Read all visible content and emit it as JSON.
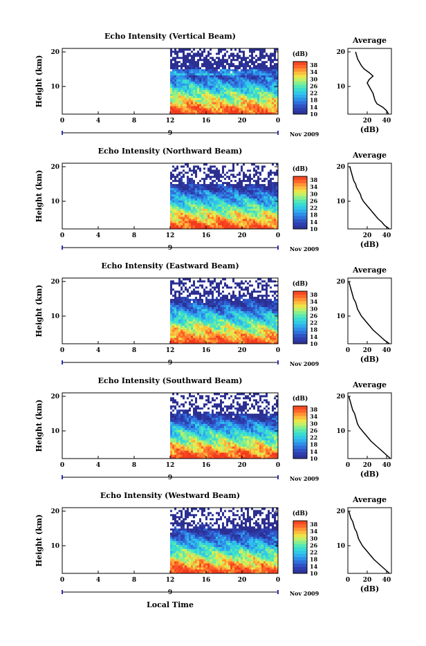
{
  "figure": {
    "xlabel": "Local Time",
    "date_label": "Nov 2009",
    "date_tick": "9",
    "colorbar_unit": "(dB)",
    "avg_title": "Average",
    "avg_xlabel": "(dB)",
    "ylabel": "Height (km)"
  },
  "chart_data": [
    {
      "type": "heatmap",
      "title": "Echo Intensity (Vertical Beam)",
      "ylabel": "Height (km)",
      "xlabel": "Local Time",
      "x_ticks": [
        "0",
        "4",
        "8",
        "12",
        "16",
        "20",
        "0"
      ],
      "y_ticks": [
        "10",
        "20"
      ],
      "xlim": [
        0,
        24
      ],
      "ylim": [
        2,
        21
      ],
      "data_start_hour": 12,
      "colorbar": {
        "unit": "(dB)",
        "ticks": [
          "10",
          "14",
          "18",
          "22",
          "26",
          "30",
          "34",
          "38"
        ],
        "range": [
          10,
          40
        ]
      },
      "profile": {
        "title": "Average",
        "xlabel": "(dB)",
        "x_ticks": [
          "20",
          "40"
        ],
        "xlim": [
          0,
          45
        ],
        "heights": [
          2,
          3,
          4,
          5,
          6,
          7,
          8,
          9,
          10,
          11,
          12,
          13,
          14,
          15,
          16,
          17,
          18,
          19,
          20
        ],
        "values": [
          42,
          40,
          36,
          30,
          28,
          27,
          26,
          24,
          22,
          20,
          22,
          26,
          22,
          17,
          14,
          12,
          10,
          9,
          8
        ]
      }
    },
    {
      "type": "heatmap",
      "title": "Echo Intensity (Northward Beam)",
      "ylabel": "Height (km)",
      "xlabel": "Local Time",
      "x_ticks": [
        "0",
        "4",
        "8",
        "12",
        "16",
        "20",
        "0"
      ],
      "y_ticks": [
        "10",
        "20"
      ],
      "xlim": [
        0,
        24
      ],
      "ylim": [
        2,
        21
      ],
      "data_start_hour": 12,
      "colorbar": {
        "unit": "(dB)",
        "ticks": [
          "10",
          "14",
          "18",
          "22",
          "26",
          "30",
          "34",
          "38"
        ],
        "range": [
          10,
          40
        ]
      },
      "profile": {
        "title": "Average",
        "xlabel": "(dB)",
        "x_ticks": [
          "20",
          "40"
        ],
        "xlim": [
          0,
          45
        ],
        "heights": [
          2,
          3,
          4,
          5,
          6,
          7,
          8,
          9,
          10,
          11,
          12,
          13,
          14,
          15,
          16,
          17,
          18,
          19,
          20
        ],
        "values": [
          43,
          38,
          35,
          31,
          28,
          25,
          22,
          19,
          16,
          14,
          13,
          11,
          9,
          8,
          6,
          5,
          4,
          3,
          2
        ]
      }
    },
    {
      "type": "heatmap",
      "title": "Echo Intensity (Eastward Beam)",
      "ylabel": "Height (km)",
      "xlabel": "Local Time",
      "x_ticks": [
        "0",
        "4",
        "8",
        "12",
        "16",
        "20",
        "0"
      ],
      "y_ticks": [
        "10",
        "20"
      ],
      "xlim": [
        0,
        24
      ],
      "ylim": [
        2,
        21
      ],
      "data_start_hour": 12,
      "colorbar": {
        "unit": "(dB)",
        "ticks": [
          "10",
          "14",
          "18",
          "22",
          "26",
          "30",
          "34",
          "38"
        ],
        "range": [
          10,
          40
        ]
      },
      "profile": {
        "title": "Average",
        "xlabel": "(dB)",
        "x_ticks": [
          "0",
          "20",
          "40"
        ],
        "xlim": [
          0,
          45
        ],
        "heights": [
          2,
          3,
          4,
          5,
          6,
          7,
          8,
          9,
          10,
          11,
          12,
          13,
          14,
          15,
          16,
          17,
          18,
          19,
          20
        ],
        "values": [
          43,
          38,
          34,
          30,
          26,
          23,
          20,
          17,
          14,
          12,
          10,
          9,
          8,
          6,
          5,
          4,
          3,
          2,
          1
        ]
      }
    },
    {
      "type": "heatmap",
      "title": "Echo Intensity (Southward Beam)",
      "ylabel": "Height (km)",
      "xlabel": "Local Time",
      "x_ticks": [
        "0",
        "4",
        "8",
        "12",
        "16",
        "20",
        "0"
      ],
      "y_ticks": [
        "10",
        "20"
      ],
      "xlim": [
        0,
        24
      ],
      "ylim": [
        2,
        21
      ],
      "data_start_hour": 12,
      "colorbar": {
        "unit": "(dB)",
        "ticks": [
          "10",
          "14",
          "18",
          "22",
          "26",
          "30",
          "34",
          "38"
        ],
        "range": [
          10,
          40
        ]
      },
      "profile": {
        "title": "Average",
        "xlabel": "(dB)",
        "x_ticks": [
          "0",
          "20",
          "40"
        ],
        "xlim": [
          0,
          45
        ],
        "heights": [
          2,
          3,
          4,
          5,
          6,
          7,
          8,
          9,
          10,
          11,
          12,
          13,
          14,
          15,
          16,
          17,
          18,
          19,
          20
        ],
        "values": [
          44,
          40,
          36,
          32,
          28,
          24,
          21,
          18,
          15,
          12,
          10,
          9,
          8,
          7,
          5,
          4,
          3,
          2,
          1
        ]
      }
    },
    {
      "type": "heatmap",
      "title": "Echo Intensity (Westward Beam)",
      "ylabel": "Height (km)",
      "xlabel": "Local Time",
      "x_ticks": [
        "0",
        "4",
        "8",
        "12",
        "16",
        "20",
        "0"
      ],
      "y_ticks": [
        "10",
        "20"
      ],
      "xlim": [
        0,
        24
      ],
      "ylim": [
        2,
        21
      ],
      "data_start_hour": 12,
      "colorbar": {
        "unit": "(dB)",
        "ticks": [
          "10",
          "14",
          "18",
          "22",
          "26",
          "30",
          "34",
          "38"
        ],
        "range": [
          10,
          40
        ]
      },
      "profile": {
        "title": "Average",
        "xlabel": "(dB)",
        "x_ticks": [
          "0",
          "20",
          "40"
        ],
        "xlim": [
          0,
          45
        ],
        "heights": [
          2,
          3,
          4,
          5,
          6,
          7,
          8,
          9,
          10,
          11,
          12,
          13,
          14,
          15,
          16,
          17,
          18,
          19,
          20
        ],
        "values": [
          43,
          39,
          35,
          31,
          27,
          24,
          21,
          18,
          15,
          13,
          11,
          10,
          9,
          7,
          6,
          5,
          3,
          2,
          1
        ]
      }
    }
  ]
}
